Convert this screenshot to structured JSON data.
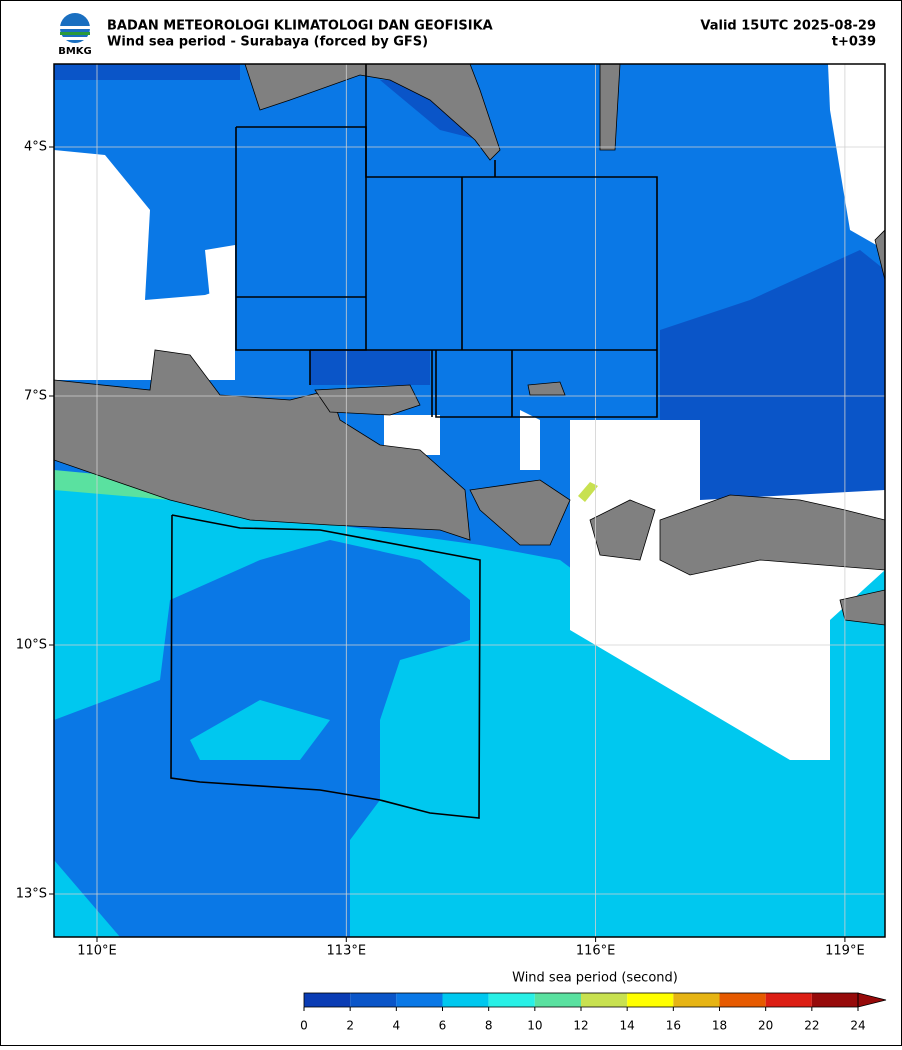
{
  "header": {
    "logo_text": "BMKG",
    "title": "BADAN METEOROLOGI KLIMATOLOGI DAN GEOFISIKA",
    "subtitle": "Wind sea period - Surabaya (forced by GFS)",
    "valid": "Valid 15UTC 2025-08-29",
    "step": "t+039"
  },
  "map": {
    "lon_labels": [
      "110°E",
      "113°E",
      "116°E",
      "119°E"
    ],
    "lat_labels": [
      "4°S",
      "7°S",
      "10°S",
      "13°S"
    ]
  },
  "colorbar": {
    "label": "Wind sea period (second)",
    "ticks": [
      0,
      2,
      4,
      6,
      8,
      10,
      12,
      14,
      16,
      18,
      20,
      22,
      24
    ],
    "colors": [
      "#0a3cb4",
      "#0a55c8",
      "#0a78e6",
      "#00c8ef",
      "#28f0e6",
      "#5ae1a0",
      "#c8e150",
      "#ffff00",
      "#e6b414",
      "#e65a00",
      "#dc1e14",
      "#960a0a"
    ]
  }
}
